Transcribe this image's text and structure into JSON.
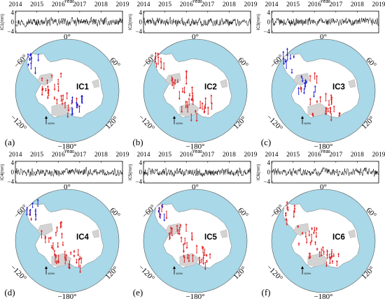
{
  "chart_data": [
    {
      "type": "line",
      "component": "IC1",
      "xlabel": "Year",
      "x_ticks": [
        "2014",
        "2015",
        "2016",
        "2017",
        "2018",
        "2019"
      ],
      "xlim": [
        2014,
        2019
      ],
      "ylabel": "IC1(mm)",
      "y_ticks": [
        "4",
        "0",
        "−4"
      ],
      "ylim": [
        -4,
        4
      ],
      "map_labels": {
        "lon_0": "0°",
        "lon_60": "60°",
        "lon_120": "120°",
        "lon_180": "−180°",
        "lon_m120": "−120°",
        "lon_m60": "−60°"
      },
      "map_title": "IC1",
      "panel_label": "(a)",
      "scale_label": "100%",
      "vector_color_up": "#e0191b",
      "vector_color_down": "#1a1ad8"
    },
    {
      "type": "line",
      "component": "IC2",
      "xlabel": "Year",
      "x_ticks": [
        "2014",
        "2015",
        "2016",
        "2017",
        "2018",
        "2019"
      ],
      "xlim": [
        2014,
        2019
      ],
      "ylabel": "IC2(mm)",
      "y_ticks": [
        "4",
        "0",
        "−4"
      ],
      "ylim": [
        -4,
        4
      ],
      "map_labels": {
        "lon_0": "0°",
        "lon_60": "60°",
        "lon_120": "120°",
        "lon_180": "−180°",
        "lon_m120": "−120°",
        "lon_m60": "−60°"
      },
      "map_title": "IC2",
      "panel_label": "(b)",
      "scale_label": "100%",
      "vector_color_up": "#e0191b",
      "vector_color_down": "#1a1ad8"
    },
    {
      "type": "line",
      "component": "IC3",
      "xlabel": "Year",
      "x_ticks": [
        "2014",
        "2015",
        "2016",
        "2017",
        "2018",
        "2019"
      ],
      "xlim": [
        2014,
        2019
      ],
      "ylabel": "IC3(mm)",
      "y_ticks": [
        "4",
        "0",
        "−4"
      ],
      "ylim": [
        -4,
        4
      ],
      "map_labels": {
        "lon_0": "0°",
        "lon_60": "60°",
        "lon_120": "120°",
        "lon_180": "−180°",
        "lon_m120": "−120°",
        "lon_m60": "−60°"
      },
      "map_title": "IC3",
      "panel_label": "(c)",
      "scale_label": "100%",
      "vector_color_up": "#e0191b",
      "vector_color_down": "#1a1ad8"
    },
    {
      "type": "line",
      "component": "IC4",
      "xlabel": "Year",
      "x_ticks": [
        "2014",
        "2015",
        "2016",
        "2017",
        "2018",
        "2019"
      ],
      "xlim": [
        2014,
        2019
      ],
      "ylabel": "IC4(mm)",
      "y_ticks": [
        "4",
        "0",
        "−4"
      ],
      "ylim": [
        -4,
        4
      ],
      "map_labels": {
        "lon_0": "0°",
        "lon_60": "60°",
        "lon_120": "120°",
        "lon_180": "−180°",
        "lon_m120": "−120°",
        "lon_m60": "−60°"
      },
      "map_title": "IC4",
      "panel_label": "(d)",
      "scale_label": "100%",
      "vector_color_up": "#e0191b",
      "vector_color_down": "#1a1ad8"
    },
    {
      "type": "line",
      "component": "IC5",
      "xlabel": "Year",
      "x_ticks": [
        "2014",
        "2015",
        "2016",
        "2017",
        "2018",
        "2019"
      ],
      "xlim": [
        2014,
        2019
      ],
      "ylabel": "IC5(mm)",
      "y_ticks": [
        "4",
        "0",
        "−4"
      ],
      "ylim": [
        -4,
        4
      ],
      "map_labels": {
        "lon_0": "0°",
        "lon_60": "60°",
        "lon_120": "120°",
        "lon_180": "−180°",
        "lon_m120": "−120°",
        "lon_m60": "−60°"
      },
      "map_title": "IC5",
      "panel_label": "(e)",
      "scale_label": "100%",
      "vector_color_up": "#e0191b",
      "vector_color_down": "#1a1ad8"
    },
    {
      "type": "line",
      "component": "IC6",
      "xlabel": "Year",
      "x_ticks": [
        "2014",
        "2015",
        "2016",
        "2017",
        "2018",
        "2019"
      ],
      "xlim": [
        2014,
        2019
      ],
      "ylabel": "IC6(mm)",
      "y_ticks": [
        "4",
        "0",
        "−4"
      ],
      "ylim": [
        -4,
        4
      ],
      "map_labels": {
        "lon_0": "0°",
        "lon_60": "60°",
        "lon_120": "120°",
        "lon_180": "−180°",
        "lon_m120": "−120°",
        "lon_m60": "−60°"
      },
      "map_title": "IC6",
      "panel_label": "(f)",
      "scale_label": "100%",
      "vector_color_up": "#e0191b",
      "vector_color_down": "#1a1ad8"
    }
  ],
  "colors": {
    "ocean": "#a9d8e8",
    "land": "#ffffff",
    "ice_shelf": "#d3d3d3",
    "line": "#000000"
  }
}
